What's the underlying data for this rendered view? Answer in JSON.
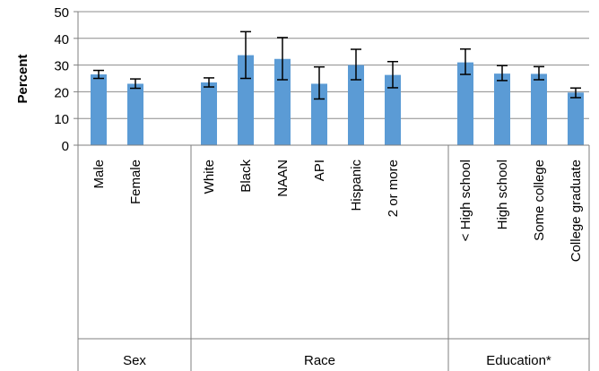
{
  "chart_data": {
    "type": "bar",
    "title": "",
    "ylabel": "Percent",
    "xlabel": "",
    "ylim": [
      0,
      50
    ],
    "yticks": [
      0,
      10,
      20,
      30,
      40,
      50
    ],
    "grid": true,
    "error_bars": true,
    "bar_color": "#5b9bd5",
    "groups": [
      {
        "label": "Sex",
        "categories": [
          "Male",
          "Female"
        ],
        "values": [
          26.5,
          23.0
        ],
        "err_low": [
          25.0,
          21.3
        ],
        "err_high": [
          28.0,
          24.8
        ]
      },
      {
        "label": "Race",
        "categories": [
          "White",
          "Black",
          "NAAN",
          "API",
          "Hispanic",
          "2 or more"
        ],
        "values": [
          23.5,
          33.7,
          32.3,
          23.0,
          30.0,
          26.3
        ],
        "err_low": [
          21.8,
          25.0,
          24.5,
          17.3,
          24.5,
          21.5
        ],
        "err_high": [
          25.2,
          42.5,
          40.3,
          29.3,
          35.9,
          31.3
        ]
      },
      {
        "label": "Education*",
        "categories": [
          "< High school",
          "High school",
          "Some college",
          "College graduate"
        ],
        "values": [
          31.0,
          26.8,
          26.7,
          19.7
        ],
        "err_low": [
          26.5,
          24.2,
          24.5,
          17.8
        ],
        "err_high": [
          36.0,
          29.8,
          29.4,
          21.4
        ]
      }
    ]
  }
}
